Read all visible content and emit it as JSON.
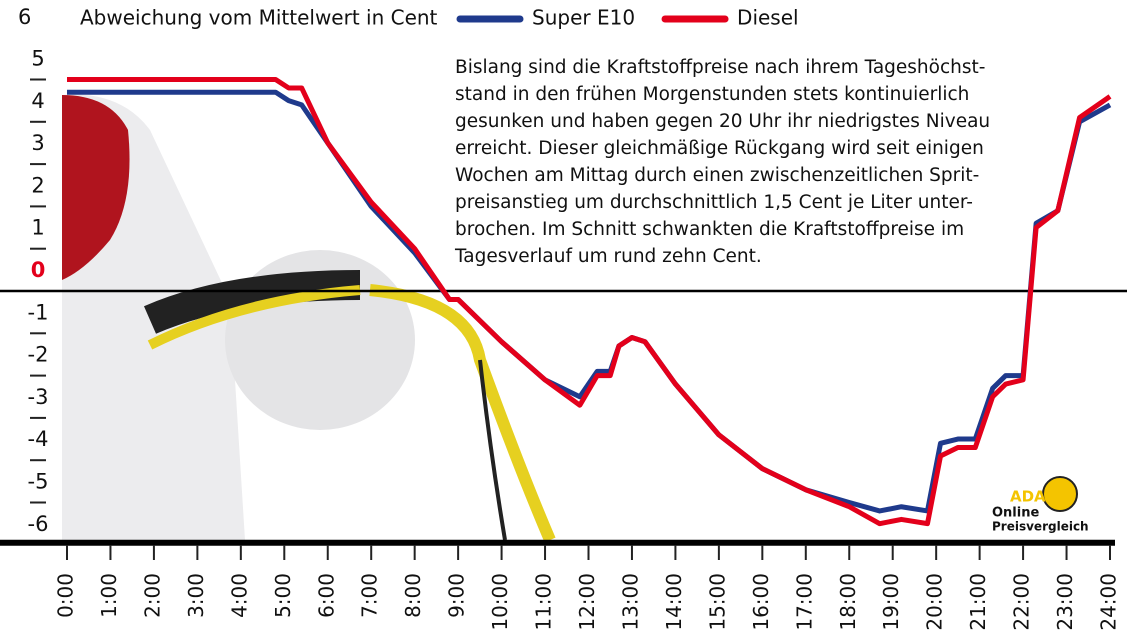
{
  "chart_data": {
    "type": "line",
    "title": "Abweichung vom Mittelwert in Cent",
    "annotation": [
      "Bislang sind die Kraftstoffpreise nach ihrem Tageshöchst-",
      "stand in den frühen Morgenstunden stets kontinuierlich",
      "gesunken und haben gegen 20 Uhr ihr niedrigstes Niveau",
      "erreicht. Dieser gleichmäßige Rückgang wird seit einigen",
      "Wochen am Mittag durch einen zwischenzeitlichen Sprit-",
      "preisanstieg um durchschnittlich 1,5 Cent je Liter unter-",
      "brochen. Im Schnitt schwankten die Kraftstoffpreise im",
      "Tagesverlauf um rund zehn Cent."
    ],
    "logo": [
      "ADAC",
      "Online",
      "Preisvergleich"
    ],
    "x": [
      0,
      4.8,
      5.1,
      5.4,
      6,
      7,
      8,
      8.8,
      9,
      10,
      11,
      11.8,
      12.2,
      12.5,
      12.7,
      13,
      13.3,
      14,
      15,
      16,
      17,
      18,
      18.7,
      19.2,
      19.8,
      20.1,
      20.5,
      20.9,
      21.3,
      21.6,
      22,
      22.3,
      22.8,
      23.3,
      24
    ],
    "series": [
      {
        "name": "Super E10",
        "color": "#1f3a8c",
        "values": [
          4.7,
          4.7,
          4.5,
          4.4,
          3.5,
          2.0,
          0.9,
          -0.2,
          -0.2,
          -1.2,
          -2.1,
          -2.5,
          -1.9,
          -1.9,
          -1.3,
          -1.1,
          -1.2,
          -2.2,
          -3.4,
          -4.2,
          -4.7,
          -5.0,
          -5.2,
          -5.1,
          -5.2,
          -3.6,
          -3.5,
          -3.5,
          -2.3,
          -2.0,
          -2.0,
          1.6,
          1.9,
          4.0,
          4.4
        ]
      },
      {
        "name": "Diesel",
        "color": "#e3001b",
        "values": [
          5.0,
          5.0,
          4.8,
          4.8,
          3.5,
          2.1,
          1.0,
          -0.2,
          -0.2,
          -1.2,
          -2.1,
          -2.7,
          -2.0,
          -2.0,
          -1.3,
          -1.1,
          -1.2,
          -2.2,
          -3.4,
          -4.2,
          -4.7,
          -5.1,
          -5.5,
          -5.4,
          -5.5,
          -3.9,
          -3.7,
          -3.7,
          -2.5,
          -2.2,
          -2.1,
          1.5,
          1.9,
          4.1,
          4.6
        ]
      }
    ],
    "xlim": [
      0,
      24
    ],
    "xticks": [
      {
        "value": 0,
        "label": "0:00"
      },
      {
        "value": 1,
        "label": "1:00"
      },
      {
        "value": 2,
        "label": "2:00"
      },
      {
        "value": 3,
        "label": "3:00"
      },
      {
        "value": 4,
        "label": "4:00"
      },
      {
        "value": 5,
        "label": "5:00"
      },
      {
        "value": 6,
        "label": "6:00"
      },
      {
        "value": 7,
        "label": "7:00"
      },
      {
        "value": 8,
        "label": "8:00"
      },
      {
        "value": 9,
        "label": "9:00"
      },
      {
        "value": 10,
        "label": "10:00"
      },
      {
        "value": 11,
        "label": "11:00"
      },
      {
        "value": 12,
        "label": "12:00"
      },
      {
        "value": 13,
        "label": "13:00"
      },
      {
        "value": 14,
        "label": "14:00"
      },
      {
        "value": 15,
        "label": "15:00"
      },
      {
        "value": 16,
        "label": "16:00"
      },
      {
        "value": 17,
        "label": "17:00"
      },
      {
        "value": 18,
        "label": "18:00"
      },
      {
        "value": 19,
        "label": "19:00"
      },
      {
        "value": 20,
        "label": "20:00"
      },
      {
        "value": 21,
        "label": "21:00"
      },
      {
        "value": 22,
        "label": "22:00"
      },
      {
        "value": 23,
        "label": "23:00"
      },
      {
        "value": 24,
        "label": "24:00"
      }
    ],
    "ylim": [
      -6,
      6
    ],
    "yticks": [
      6,
      5,
      4,
      3,
      2,
      1,
      0,
      -1,
      -2,
      -3,
      -4,
      -5,
      -6
    ]
  }
}
